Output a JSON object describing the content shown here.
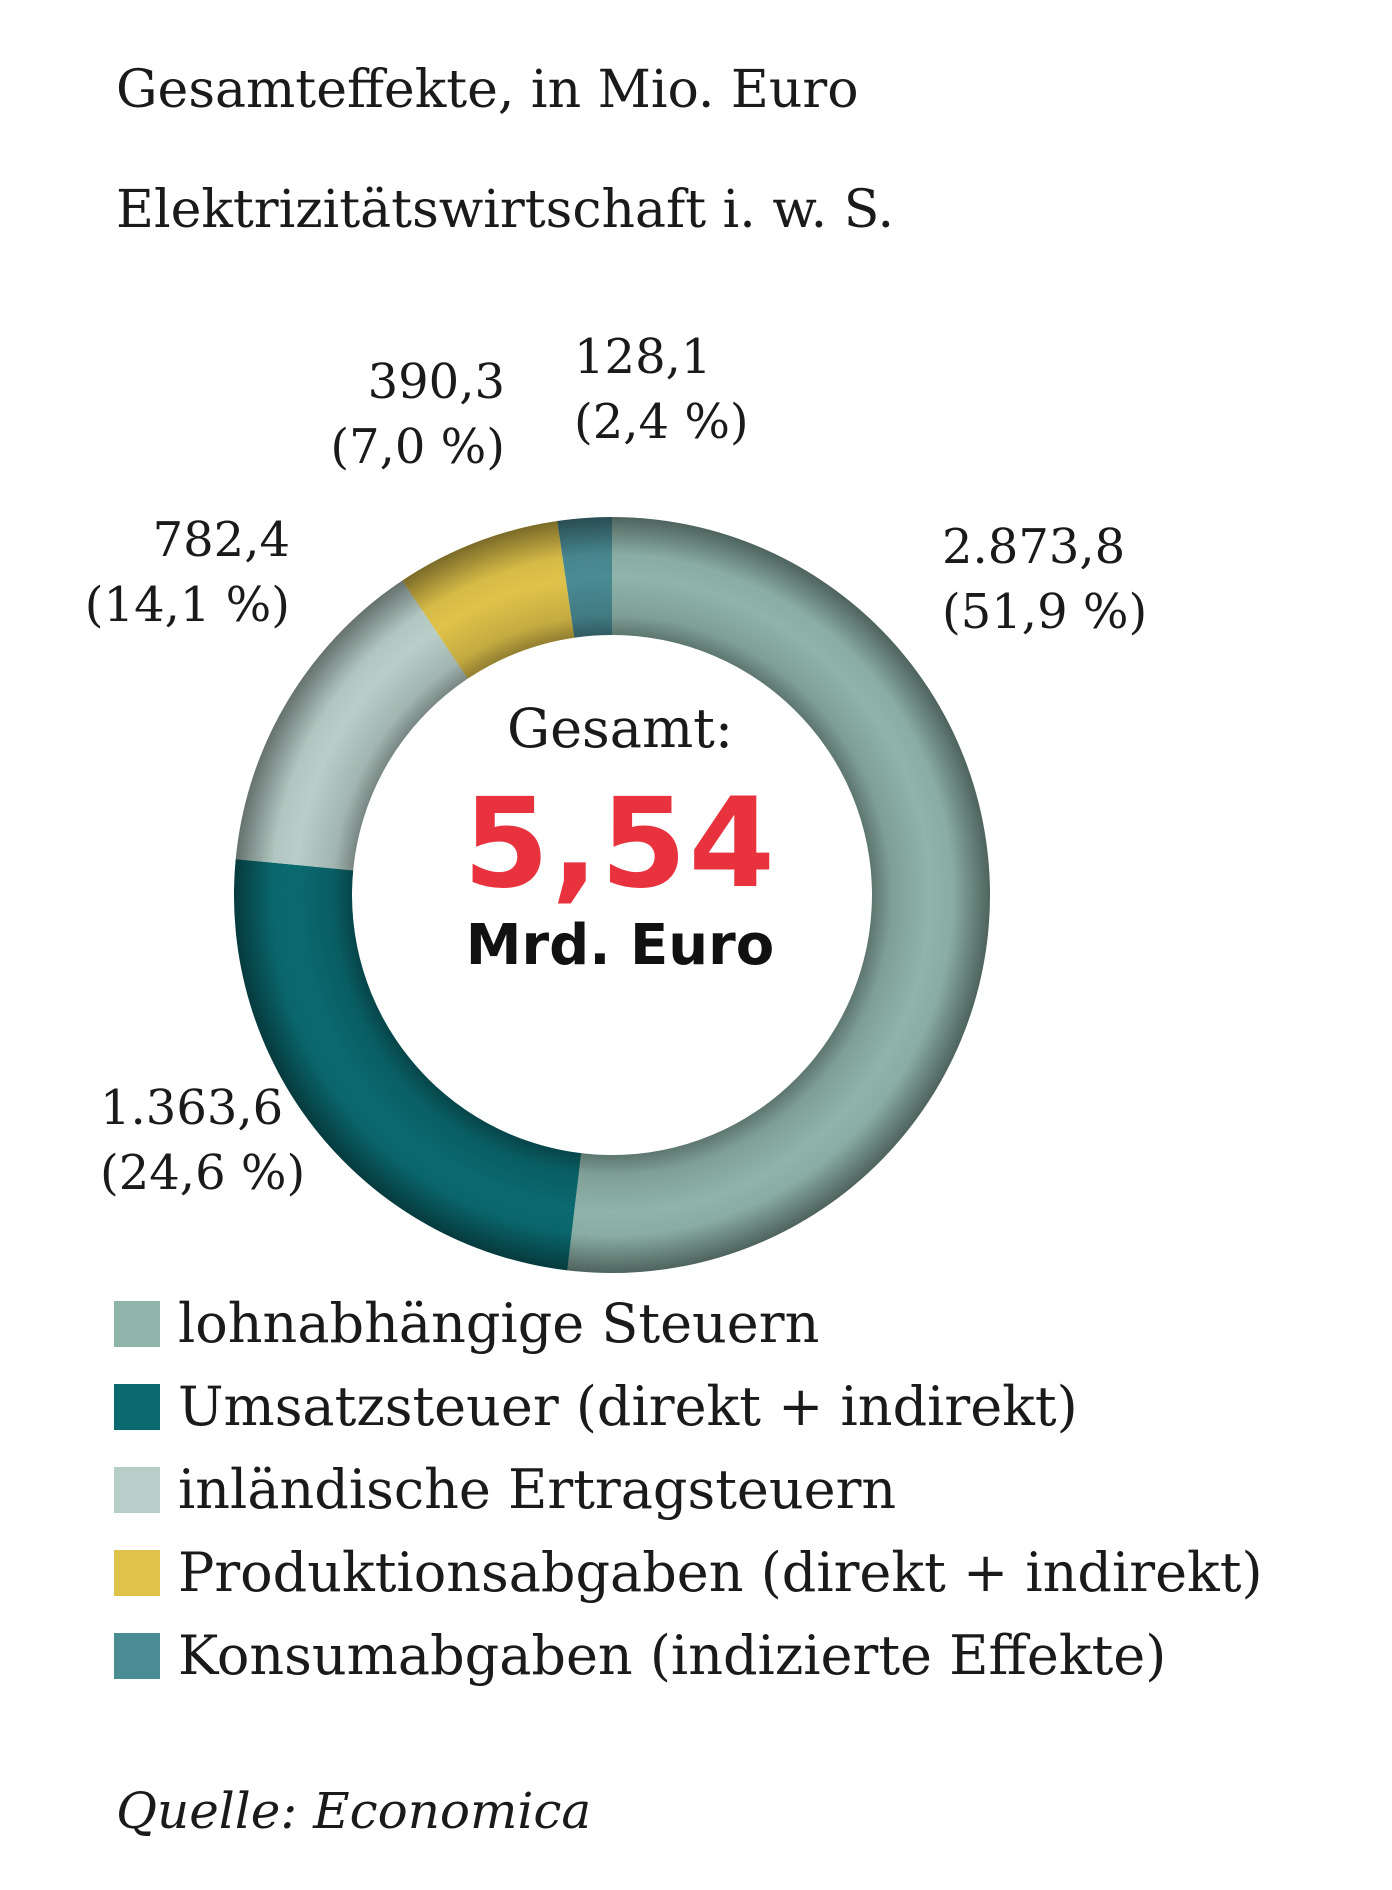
{
  "chart_data": {
    "type": "pie",
    "variant": "donut",
    "title": "Gesamteffekte, in Mio. Euro",
    "subtitle": "Elektrizitätswirtschaft i. w. S.",
    "center": {
      "heading": "Gesamt:",
      "value": "5,54",
      "unit": "Mrd. Euro"
    },
    "slices": [
      {
        "name": "lohnabhängige Steuern",
        "value": 2873.8,
        "percent": 51.9,
        "value_label": "2.873,8",
        "percent_label": "(51,9 %)",
        "color": "#8fb4aa"
      },
      {
        "name": "Umsatzsteuer (direkt + indirekt)",
        "value": 1363.6,
        "percent": 24.6,
        "value_label": "1.363,6",
        "percent_label": "(24,6 %)",
        "color": "#0a6a70"
      },
      {
        "name": "inländische Ertragsteuern",
        "value": 782.4,
        "percent": 14.1,
        "value_label": "782,4",
        "percent_label": "(14,1 %)",
        "color": "#b8cec8"
      },
      {
        "name": "Produktionsabgaben (direkt + indirekt)",
        "value": 390.3,
        "percent": 7.0,
        "value_label": "390,3",
        "percent_label": "(7,0 %)",
        "color": "#dfc24a"
      },
      {
        "name": "Konsumabgaben (indizierte Effekte)",
        "value": 128.1,
        "percent": 2.4,
        "value_label": "128,1",
        "percent_label": "(2,4 %)",
        "color": "#4a8b94"
      }
    ],
    "legend_position": "bottom",
    "source": "Quelle: Economica"
  }
}
